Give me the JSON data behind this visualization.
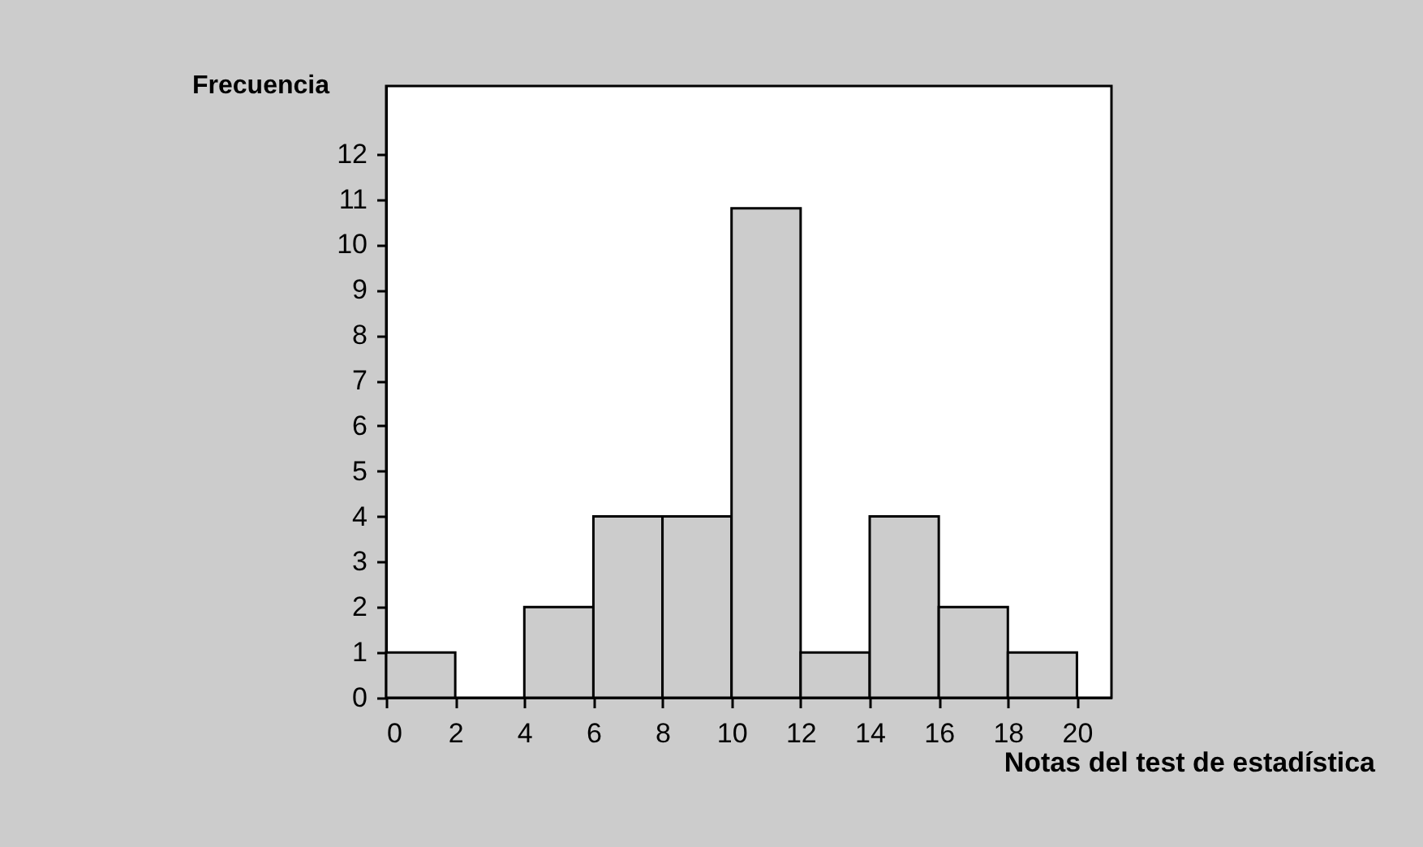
{
  "chart_data": {
    "type": "histogram",
    "xlabel": "Notas del test de estadística",
    "ylabel": "Frecuencia",
    "bins": [
      0,
      2,
      4,
      6,
      8,
      10,
      12,
      14,
      16,
      18,
      20
    ],
    "values": [
      1,
      0,
      2,
      4,
      4,
      10.8,
      1,
      4,
      2,
      1
    ],
    "color": "#cccccc",
    "xlim": [
      0,
      21
    ],
    "xticks": [
      0,
      2,
      4,
      6,
      8,
      10,
      12,
      14,
      16,
      18,
      20
    ],
    "ylim": [
      0,
      13.5
    ],
    "yticks": [
      0,
      1,
      2,
      3,
      4,
      5,
      6,
      7,
      8,
      9,
      10,
      11,
      12
    ],
    "grid": false
  }
}
